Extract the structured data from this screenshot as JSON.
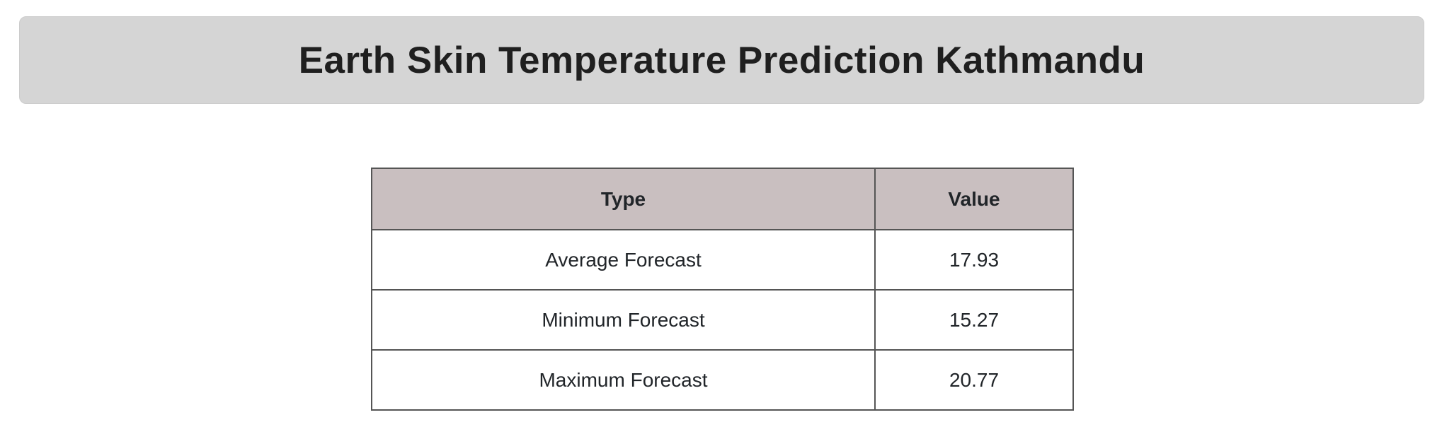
{
  "header": {
    "title": "Earth Skin Temperature Prediction Kathmandu"
  },
  "table": {
    "columns": [
      "Type",
      "Value"
    ],
    "rows": [
      [
        "Average Forecast",
        "17.93"
      ],
      [
        "Minimum Forecast",
        "15.27"
      ],
      [
        "Maximum Forecast",
        "20.77"
      ]
    ]
  },
  "colors": {
    "banner_bg": "#d5d5d5",
    "table_header_bg": "#c9bfc0",
    "table_border": "#555555",
    "text": "#212529",
    "title_text": "#1f1f1f"
  }
}
